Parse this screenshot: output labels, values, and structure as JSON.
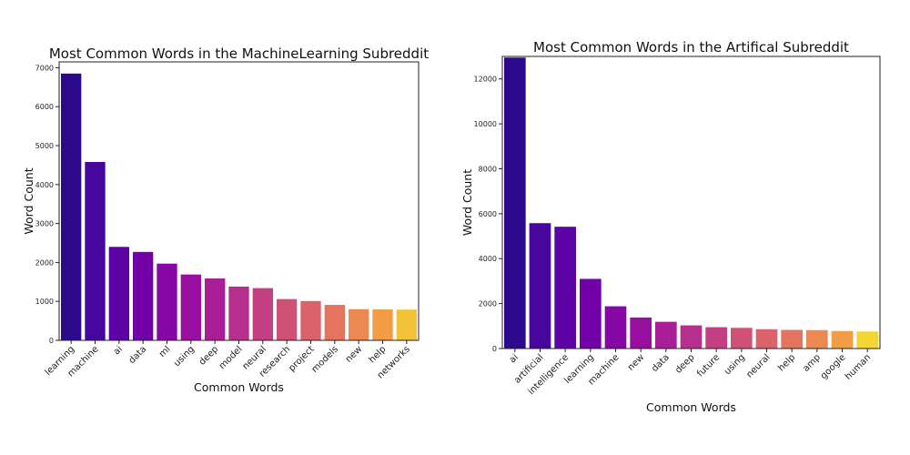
{
  "chart_data": [
    {
      "type": "bar",
      "title": "Most Common Words in the MachineLearning Subreddit",
      "xlabel": "Common Words",
      "ylabel": "Word Count",
      "categories": [
        "learning",
        "machine",
        "ai",
        "data",
        "ml",
        "using",
        "deep",
        "model",
        "neural",
        "research",
        "project",
        "models",
        "new",
        "help",
        "networks"
      ],
      "values": [
        6850,
        4580,
        2400,
        2270,
        1970,
        1690,
        1590,
        1380,
        1340,
        1060,
        1010,
        910,
        800,
        795,
        790
      ],
      "yticks": [
        0,
        1000,
        2000,
        3000,
        4000,
        5000,
        6000,
        7000
      ],
      "ylim": [
        0,
        7150
      ],
      "grid": false,
      "colors": [
        "#2d0a8c",
        "#48079c",
        "#5d03a6",
        "#7201a8",
        "#8606a6",
        "#980fa0",
        "#a91e96",
        "#b72f8c",
        "#c43f81",
        "#d05176",
        "#da626a",
        "#e4745e",
        "#ec8851",
        "#f29d45",
        "#f3c236"
      ]
    },
    {
      "type": "bar",
      "title": "Most Common Words in the Artifical Subreddit",
      "xlabel": "Common Words",
      "ylabel": "Word Count",
      "categories": [
        "ai",
        "artificial",
        "intelligence",
        "learning",
        "machine",
        "new",
        "data",
        "deep",
        "future",
        "using",
        "neural",
        "help",
        "amp",
        "google",
        "human"
      ],
      "values": [
        12950,
        5580,
        5420,
        3100,
        1880,
        1380,
        1190,
        1030,
        950,
        920,
        860,
        830,
        820,
        780,
        760
      ],
      "yticks": [
        0,
        2000,
        4000,
        6000,
        8000,
        10000,
        12000
      ],
      "ylim": [
        0,
        13000
      ],
      "grid": false,
      "colors": [
        "#2d0a8c",
        "#48079c",
        "#5d03a6",
        "#7201a8",
        "#8606a6",
        "#980fa0",
        "#a91e96",
        "#b72f8c",
        "#c43f81",
        "#d05176",
        "#da626a",
        "#e4745e",
        "#ec8851",
        "#f29d45",
        "#f3d636"
      ]
    }
  ]
}
